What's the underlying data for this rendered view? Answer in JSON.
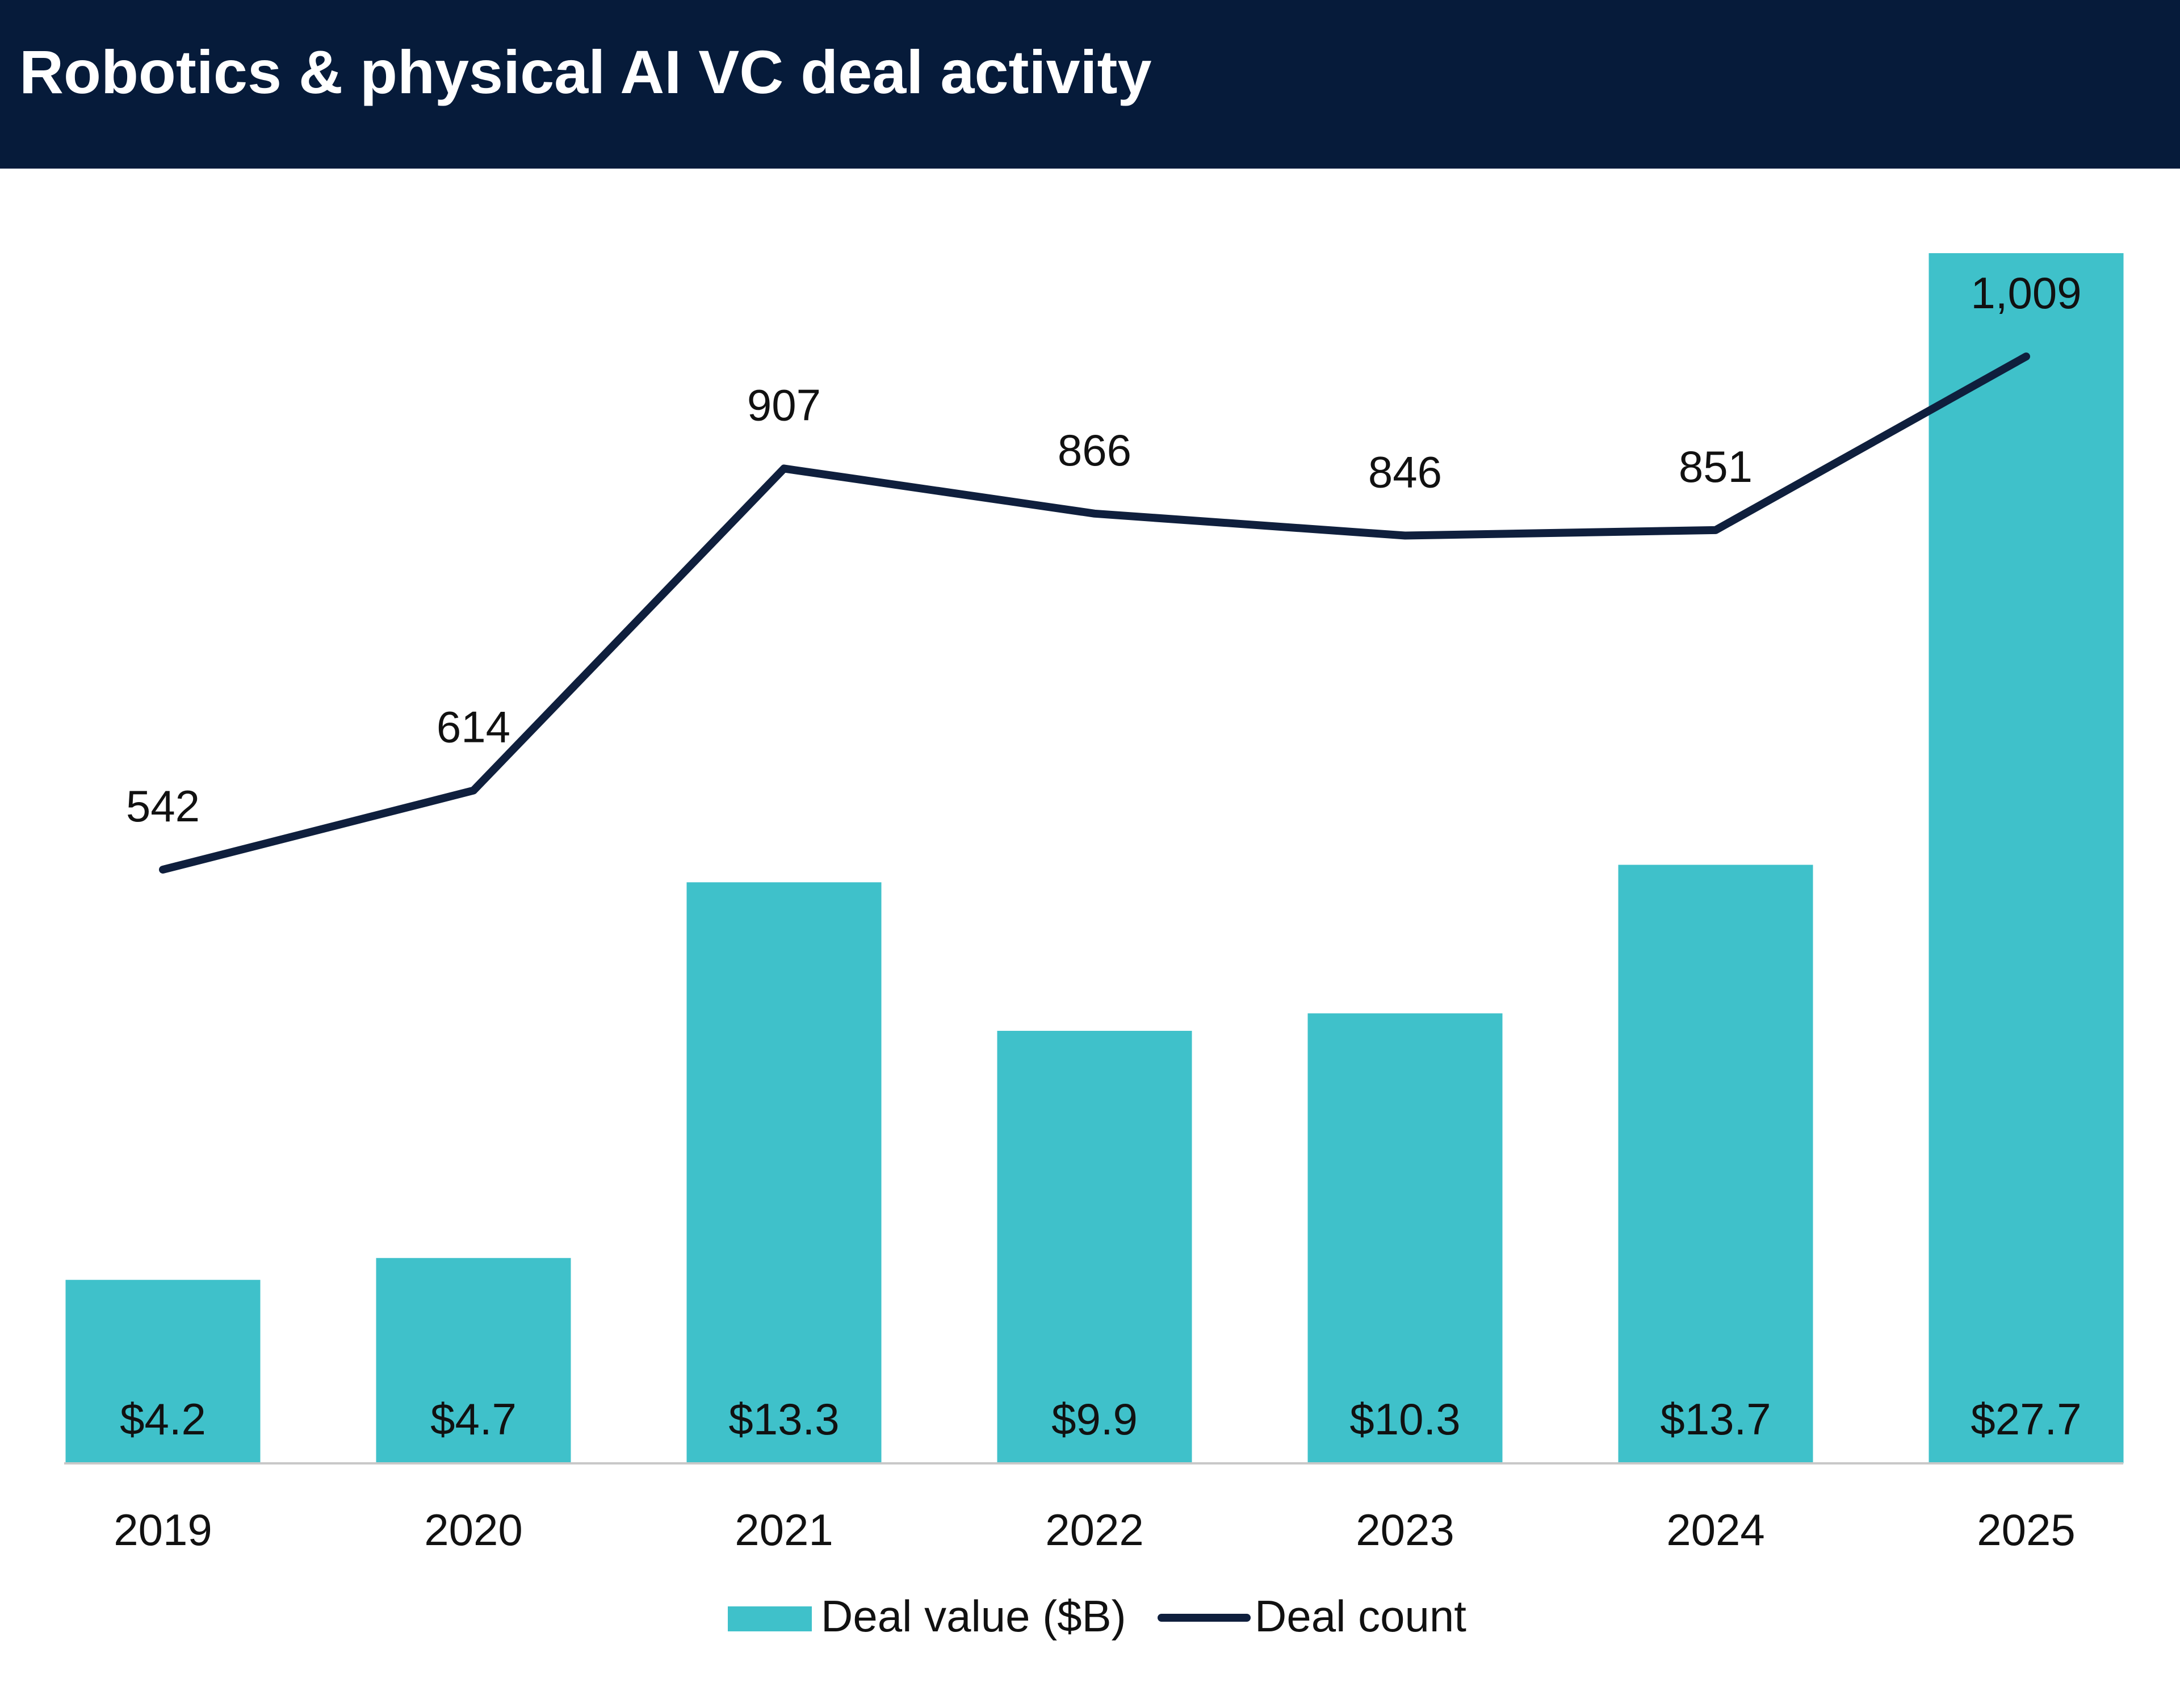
{
  "title": "Robotics & physical AI VC deal activity",
  "colors": {
    "header_bg": "#061b3a",
    "bar": "#3fc1ca",
    "line": "#0f1f3d",
    "text": "#111111",
    "axis": "#c8c8c8"
  },
  "chart_data": {
    "type": "bar",
    "title": "Robotics & physical AI VC deal activity",
    "categories": [
      "2019",
      "2020",
      "2021",
      "2022",
      "2023",
      "2024",
      "2025"
    ],
    "series": [
      {
        "name": "Deal value ($B)",
        "type": "bar",
        "values": [
          4.2,
          4.7,
          13.3,
          9.9,
          10.3,
          13.7,
          27.7
        ],
        "labels": [
          "$4.2",
          "$4.7",
          "$13.3",
          "$9.9",
          "$10.3",
          "$13.7",
          "$27.7"
        ]
      },
      {
        "name": "Deal count",
        "type": "line",
        "values": [
          542,
          614,
          907,
          866,
          846,
          851,
          1009
        ],
        "labels": [
          "542",
          "614",
          "907",
          "866",
          "846",
          "851",
          "1,009"
        ]
      }
    ],
    "legend": {
      "placement": "bottom-center"
    },
    "grid": false,
    "xlabel": "",
    "ylabel": ""
  }
}
